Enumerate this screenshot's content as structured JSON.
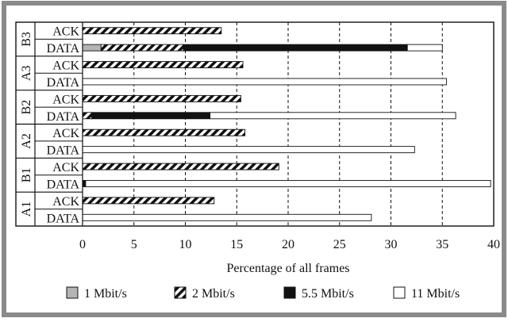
{
  "chart_data": {
    "type": "bar",
    "orientation": "horizontal",
    "stacked": true,
    "xlabel": "Percentage of all frames",
    "ylabel": "",
    "xlim": [
      0,
      40
    ],
    "xticks": [
      "0",
      "5",
      "10",
      "15",
      "20",
      "25",
      "30",
      "35",
      "40"
    ],
    "grid": "vertical dashed",
    "legend_position": "bottom",
    "groups": [
      "B3",
      "A3",
      "B2",
      "A2",
      "B1",
      "A1"
    ],
    "frame_types": [
      "ACK",
      "DATA"
    ],
    "categories": [
      {
        "group": "B3",
        "label": "ACK"
      },
      {
        "group": "B3",
        "label": "DATA"
      },
      {
        "group": "A3",
        "label": "ACK"
      },
      {
        "group": "A3",
        "label": "DATA"
      },
      {
        "group": "B2",
        "label": "ACK"
      },
      {
        "group": "B2",
        "label": "DATA"
      },
      {
        "group": "A2",
        "label": "ACK"
      },
      {
        "group": "A2",
        "label": "DATA"
      },
      {
        "group": "B1",
        "label": "ACK"
      },
      {
        "group": "B1",
        "label": "DATA"
      },
      {
        "group": "A1",
        "label": "ACK"
      },
      {
        "group": "A1",
        "label": "DATA"
      }
    ],
    "series": [
      {
        "name": "1 Mbit/s",
        "style": "gray",
        "values": [
          0,
          1.8,
          0,
          0,
          0,
          0,
          0,
          0,
          0,
          0,
          0,
          0
        ]
      },
      {
        "name": "2 Mbit/s",
        "style": "hatch",
        "values": [
          13.5,
          8.0,
          15.6,
          0,
          15.4,
          0.9,
          15.8,
          0,
          19.1,
          0,
          12.8,
          0
        ]
      },
      {
        "name": "5.5 Mbit/s",
        "style": "black",
        "values": [
          0,
          21.8,
          0,
          0,
          0,
          11.5,
          0,
          0,
          0,
          0.3,
          0,
          0
        ]
      },
      {
        "name": "11 Mbit/s",
        "style": "white",
        "values": [
          0,
          3.4,
          0,
          35.4,
          0,
          23.9,
          0,
          32.3,
          0,
          39.4,
          0,
          28.1
        ]
      }
    ]
  }
}
